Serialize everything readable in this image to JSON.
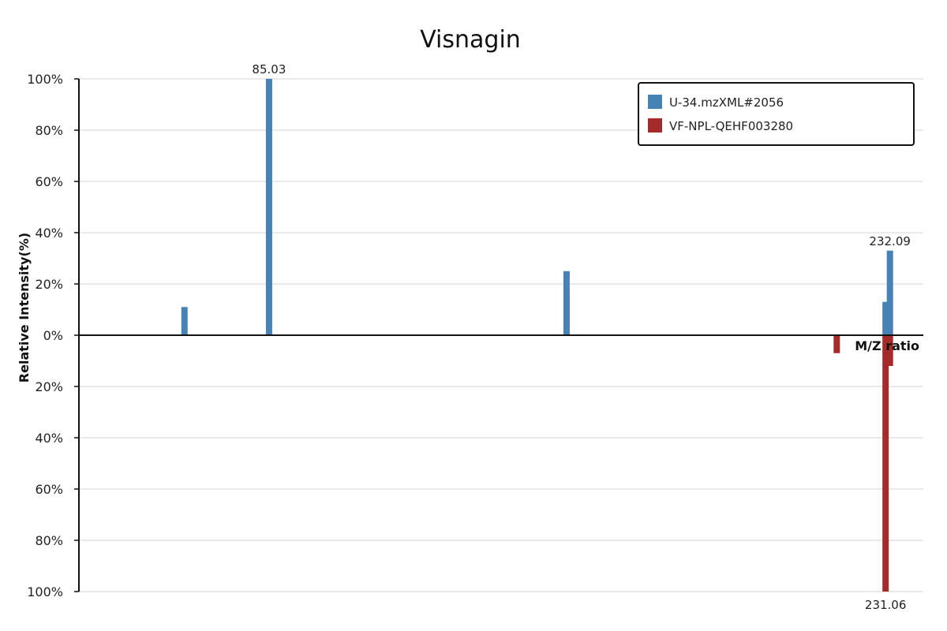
{
  "chart_data": {
    "type": "bar",
    "title": "Visnagin",
    "xlabel": "M/Z ratio",
    "ylabel": "Relative Intensity(%)",
    "ylim": [
      -100,
      100
    ],
    "xlim": [
      40,
      240
    ],
    "yticks": [
      {
        "value": 100,
        "label": "100%"
      },
      {
        "value": 80,
        "label": "80%"
      },
      {
        "value": 60,
        "label": "60%"
      },
      {
        "value": 40,
        "label": "40%"
      },
      {
        "value": 20,
        "label": "20%"
      },
      {
        "value": 0,
        "label": "0%"
      },
      {
        "value": -20,
        "label": "20%"
      },
      {
        "value": -40,
        "label": "40%"
      },
      {
        "value": -60,
        "label": "60%"
      },
      {
        "value": -80,
        "label": "80%"
      },
      {
        "value": -100,
        "label": "100%"
      }
    ],
    "grid": true,
    "legend_position": "top-right",
    "series": [
      {
        "name": "U-34.mzXML#2056",
        "color": "#4682b4",
        "direction": "up",
        "peaks": [
          {
            "mz": 65.0,
            "intensity": 11
          },
          {
            "mz": 85.03,
            "intensity": 100,
            "label": "85.03"
          },
          {
            "mz": 155.5,
            "intensity": 25
          },
          {
            "mz": 231.06,
            "intensity": 13
          },
          {
            "mz": 232.09,
            "intensity": 33,
            "label": "232.09"
          }
        ]
      },
      {
        "name": "VF-NPL-QEHF003280",
        "color": "#a52a2a",
        "direction": "down",
        "peaks": [
          {
            "mz": 219.5,
            "intensity": 7
          },
          {
            "mz": 231.06,
            "intensity": 100,
            "label": "231.06"
          },
          {
            "mz": 232.09,
            "intensity": 12
          }
        ]
      }
    ]
  }
}
